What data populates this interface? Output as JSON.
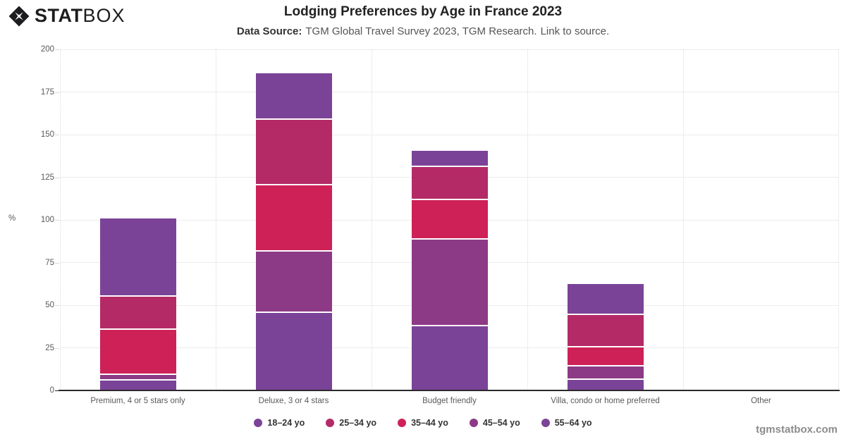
{
  "brand": {
    "logo_stat": "STAT",
    "logo_box": "BOX",
    "watermark": "tgmstatbox.com"
  },
  "header": {
    "title": "Lodging Preferences by Age in France 2023",
    "source_label": "Data Source:",
    "source_text": "TGM Global Travel Survey 2023, TGM Research.",
    "source_link": "Link to source."
  },
  "chart_data": {
    "type": "bar",
    "stacked": true,
    "stack_order": "first-series-on-top",
    "title": "Lodging Preferences by Age in France 2023",
    "xlabel": "",
    "ylabel": "%",
    "ylim": [
      0,
      200
    ],
    "yticks": [
      0,
      25,
      50,
      75,
      100,
      125,
      150,
      175,
      200
    ],
    "grid": true,
    "legend_position": "bottom",
    "categories": [
      "Premium, 4 or 5 stars only",
      "Deluxe, 3 or 4 stars",
      "Budget friendly",
      "Villa, condo or home preferred",
      "Other"
    ],
    "series": [
      {
        "name": "18–24 yo",
        "color": "#7b4397",
        "values": [
          45,
          26.5,
          8.5,
          17.5,
          0
        ]
      },
      {
        "name": "25–34 yo",
        "color": "#b42a66",
        "values": [
          19.5,
          38.5,
          19.5,
          19,
          0
        ]
      },
      {
        "name": "35–44 yo",
        "color": "#ce2158",
        "values": [
          26.5,
          38.5,
          23,
          11,
          0
        ]
      },
      {
        "name": "45–54 yo",
        "color": "#8d3a86",
        "values": [
          3.5,
          36,
          51,
          8,
          0
        ]
      },
      {
        "name": "55–64 yo",
        "color": "#7b4397",
        "values": [
          6,
          46,
          38,
          6.5,
          0
        ]
      }
    ],
    "totals": [
      100.5,
      185.5,
      140,
      62,
      0
    ]
  }
}
